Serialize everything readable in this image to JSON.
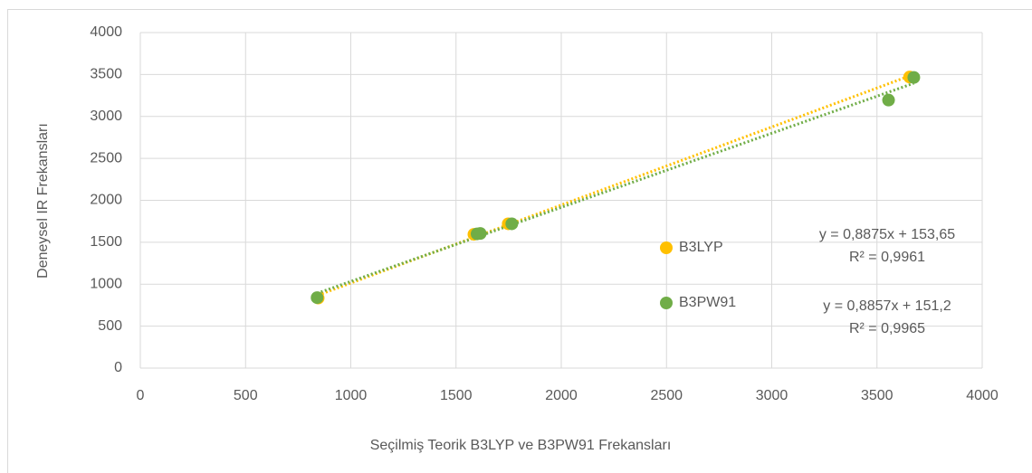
{
  "chart_data": {
    "type": "scatter",
    "x_label": "Seçilmiş Teorik B3LYP ve B3PW91  Frekansları",
    "y_label": "Deneysel IR Frekansları",
    "series": [
      {
        "name": "B3LYP",
        "color": "#ffc000",
        "x": [
          845,
          1585,
          1748,
          3655
        ],
        "values": [
          835,
          1595,
          1720,
          3470
        ]
      },
      {
        "name": "B3PW91",
        "color": "#70ad47",
        "x": [
          840,
          1600,
          1615,
          1765,
          3555,
          3675
        ],
        "values": [
          840,
          1600,
          1605,
          1720,
          3195,
          3465
        ]
      }
    ],
    "annotations": [
      "y = 0,8875x + 153,65",
      "R² = 0,9961",
      "y = 0,8857x + 151,2",
      "R² = 0,9965"
    ],
    "xlim": [
      0,
      4000
    ],
    "xticks": [
      0,
      500,
      1000,
      1500,
      2000,
      2500,
      3000,
      3500,
      4000
    ],
    "ylim": [
      0,
      4000
    ],
    "yticks": [
      0,
      500,
      1000,
      1500,
      2000,
      2500,
      3000,
      3500,
      4000
    ],
    "grid": true,
    "trendline": true
  }
}
